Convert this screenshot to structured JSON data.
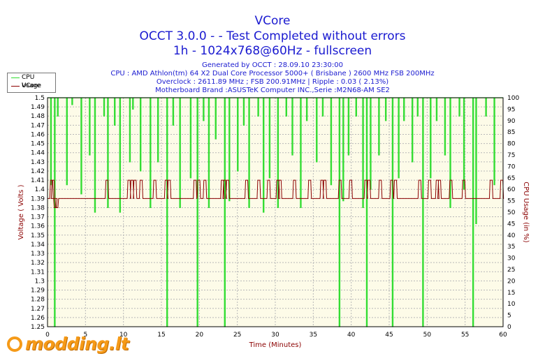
{
  "header": {
    "title": "VCore",
    "subtitle": "OCCT 3.0.0 -  - Test Completed without errors",
    "mode": "1h - 1024x768@60Hz - fullscreen",
    "generated": "Generated by OCCT : 28.09.10 23:30:00",
    "cpu": "CPU : AMD Athlon(tm) 64 X2 Dual Core Processor 5000+ ( Brisbane ) 2600 MHz FSB 200MHz",
    "overclock": "Overclock : 2611.89 MHz ; FSB 200.91MHz | Ripple : 0.03 ( 2.13%)",
    "board": "Motherboard Brand :ASUSTeK Computer INC.,Serie :M2N68-AM SE2"
  },
  "legend": {
    "cpu_usage": "CPU Usage",
    "vcore": "VCore"
  },
  "logo": {
    "text": "modding.lt",
    "color": "#f59a18"
  },
  "chart_data": {
    "type": "line",
    "xlabel": "Time (Minutes)",
    "ylabel_left": "Voltage ( Volts )",
    "ylabel_right": "CPU Usage (in %)",
    "xlim": [
      0,
      60
    ],
    "ylim_left": [
      1.25,
      1.5
    ],
    "ylim_right": [
      0,
      100
    ],
    "x_ticks": [
      0,
      5,
      10,
      15,
      20,
      25,
      30,
      35,
      40,
      45,
      50,
      55,
      60
    ],
    "y_ticks_left": [
      "1.25",
      "1.26",
      "1.27",
      "1.28",
      "1.29",
      "1.3",
      "1.31",
      "1.32",
      "1.33",
      "1.34",
      "1.35",
      "1.36",
      "1.37",
      "1.38",
      "1.39",
      "1.4",
      "1.41",
      "1.42",
      "1.43",
      "1.44",
      "1.45",
      "1.46",
      "1.47",
      "1.48",
      "1.49",
      "1.5"
    ],
    "y_ticks_right": [
      0,
      5,
      10,
      15,
      20,
      25,
      30,
      35,
      40,
      45,
      50,
      55,
      60,
      65,
      70,
      75,
      80,
      85,
      90,
      95,
      100
    ],
    "grid": true,
    "background": "#fdfbe8",
    "series": [
      {
        "name": "CPU Usage",
        "color": "#33dd33",
        "axis": "right",
        "baseline": 100,
        "dips": [
          [
            0.4,
            62
          ],
          [
            0.9,
            0
          ],
          [
            1.3,
            92
          ],
          [
            2.5,
            62
          ],
          [
            3.2,
            97
          ],
          [
            4.4,
            58
          ],
          [
            5.5,
            75
          ],
          [
            6.2,
            50
          ],
          [
            7.4,
            92
          ],
          [
            7.9,
            52
          ],
          [
            8.8,
            88
          ],
          [
            9.5,
            50
          ],
          [
            10.8,
            72
          ],
          [
            11.2,
            95
          ],
          [
            12.2,
            68
          ],
          [
            13.5,
            52
          ],
          [
            14.5,
            72
          ],
          [
            15.7,
            0
          ],
          [
            16.5,
            88
          ],
          [
            17.4,
            52
          ],
          [
            18.8,
            65
          ],
          [
            19.7,
            0
          ],
          [
            20.5,
            90
          ],
          [
            21.2,
            52
          ],
          [
            22.1,
            82
          ],
          [
            23.3,
            0
          ],
          [
            23.9,
            55
          ],
          [
            25.0,
            68
          ],
          [
            25.8,
            88
          ],
          [
            26.5,
            52
          ],
          [
            27.7,
            92
          ],
          [
            28.4,
            50
          ],
          [
            29.2,
            65
          ],
          [
            30.3,
            52
          ],
          [
            31.4,
            92
          ],
          [
            32.2,
            75
          ],
          [
            33.3,
            52
          ],
          [
            34.1,
            90
          ],
          [
            35.4,
            72
          ],
          [
            36.2,
            92
          ],
          [
            37.3,
            62
          ],
          [
            38.4,
            0
          ],
          [
            38.9,
            55
          ],
          [
            39.6,
            75
          ],
          [
            40.6,
            92
          ],
          [
            41.5,
            52
          ],
          [
            42.0,
            0
          ],
          [
            42.5,
            60
          ],
          [
            43.6,
            75
          ],
          [
            44.5,
            90
          ],
          [
            45.4,
            0
          ],
          [
            46.2,
            65
          ],
          [
            46.9,
            90
          ],
          [
            48.0,
            72
          ],
          [
            48.7,
            92
          ],
          [
            49.4,
            0
          ],
          [
            50.4,
            65
          ],
          [
            51.2,
            90
          ],
          [
            52.3,
            75
          ],
          [
            53.0,
            52
          ],
          [
            54.2,
            92
          ],
          [
            54.8,
            60
          ],
          [
            56.0,
            0
          ],
          [
            56.4,
            45
          ],
          [
            57.7,
            92
          ],
          [
            58.8,
            62
          ]
        ]
      },
      {
        "name": "VCore",
        "color": "#8b0000",
        "axis": "left",
        "baseline": 1.39,
        "spikes": [
          [
            0.3,
            1.41
          ],
          [
            0.5,
            1.41
          ],
          [
            0.8,
            1.38
          ],
          [
            1.0,
            1.38
          ],
          [
            7.6,
            1.41
          ],
          [
            10.5,
            1.41
          ],
          [
            10.9,
            1.41
          ],
          [
            11.3,
            1.41
          ],
          [
            12.1,
            1.41
          ],
          [
            13.9,
            1.41
          ],
          [
            15.4,
            1.41
          ],
          [
            15.8,
            1.41
          ],
          [
            19.2,
            1.41
          ],
          [
            19.7,
            1.41
          ],
          [
            20.5,
            1.41
          ],
          [
            22.8,
            1.41
          ],
          [
            23.1,
            1.41
          ],
          [
            23.5,
            1.41
          ],
          [
            26.0,
            1.41
          ],
          [
            27.6,
            1.41
          ],
          [
            28.9,
            1.41
          ],
          [
            30.1,
            1.41
          ],
          [
            30.4,
            1.41
          ],
          [
            32.3,
            1.41
          ],
          [
            34.3,
            1.41
          ],
          [
            35.9,
            1.41
          ],
          [
            36.3,
            1.41
          ],
          [
            38.3,
            1.41
          ],
          [
            39.7,
            1.41
          ],
          [
            41.7,
            1.41
          ],
          [
            42.1,
            1.41
          ],
          [
            43.6,
            1.41
          ],
          [
            45.1,
            1.41
          ],
          [
            45.6,
            1.41
          ],
          [
            48.8,
            1.41
          ],
          [
            50.1,
            1.41
          ],
          [
            51.1,
            1.41
          ],
          [
            51.4,
            1.41
          ],
          [
            52.9,
            1.41
          ],
          [
            54.6,
            1.41
          ],
          [
            58.2,
            1.41
          ],
          [
            59.6,
            1.41
          ]
        ]
      }
    ]
  }
}
